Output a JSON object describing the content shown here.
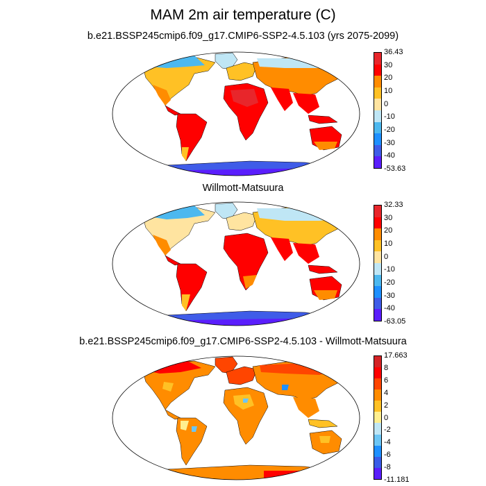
{
  "figure": {
    "title": "MAM 2m air temperature (C)"
  },
  "panels": [
    {
      "id": "model",
      "title": "b.e21.BSSP245cmip6.f09_g17.CMIP6-SSP2-4.5.103 (yrs 2075-2099)",
      "colorbar_labels": [
        "36.43",
        "30",
        "20",
        "10",
        "0",
        "-10",
        "-20",
        "-30",
        "-40",
        "-53.63"
      ],
      "colorbar_colors": [
        "#e8262b",
        "#ff0000",
        "#ff8c00",
        "#ffc125",
        "#ffe4a0",
        "#bfe6f5",
        "#4cb8ef",
        "#1e90ff",
        "#3f5ce8",
        "#5a1efc"
      ]
    },
    {
      "id": "obs",
      "title": "Willmott-Matsuura",
      "colorbar_labels": [
        "32.33",
        "30",
        "20",
        "10",
        "0",
        "-10",
        "-20",
        "-30",
        "-40",
        "-63.05"
      ],
      "colorbar_colors": [
        "#e8262b",
        "#ff0000",
        "#ff8c00",
        "#ffc125",
        "#ffe4a0",
        "#bfe6f5",
        "#4cb8ef",
        "#1e90ff",
        "#3f5ce8",
        "#5a1efc"
      ]
    },
    {
      "id": "diff",
      "title": "b.e21.BSSP245cmip6.f09_g17.CMIP6-SSP2-4.5.103 - Willmott-Matsuura",
      "colorbar_labels": [
        "17.663",
        "8",
        "6",
        "4",
        "2",
        "0",
        "-2",
        "-4",
        "-6",
        "-8",
        "-11.181"
      ],
      "colorbar_colors": [
        "#d42326",
        "#ff0000",
        "#ff4500",
        "#ff8c00",
        "#ffc125",
        "#ffef8f",
        "#bfe6f5",
        "#6cc6f5",
        "#1e90ff",
        "#3a5ce8",
        "#5a1efc"
      ]
    }
  ]
}
